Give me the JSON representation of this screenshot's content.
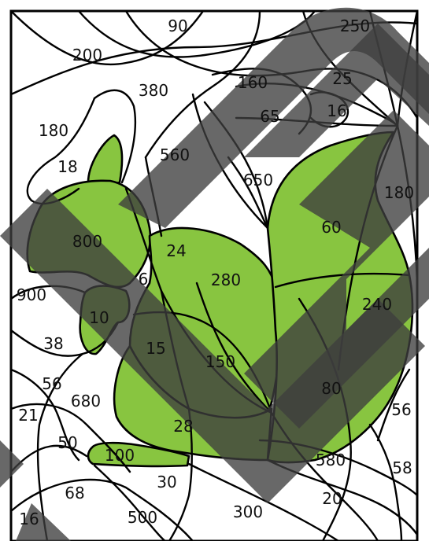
{
  "puzzle": {
    "colors": {
      "filled": "#88c540",
      "outline": "#000000",
      "watermark": "#3e3e3e",
      "background": "#ffffff"
    },
    "numbers": [
      "90",
      "250",
      "200",
      "380",
      "160",
      "25",
      "180",
      "65",
      "16",
      "18",
      "560",
      "650",
      "180",
      "800",
      "60",
      "24",
      "280",
      "900",
      "6",
      "240",
      "10",
      "38",
      "15",
      "150",
      "56",
      "680",
      "80",
      "21",
      "56",
      "28",
      "50",
      "100",
      "580",
      "58",
      "68",
      "30",
      "20",
      "300",
      "16",
      "500"
    ]
  }
}
